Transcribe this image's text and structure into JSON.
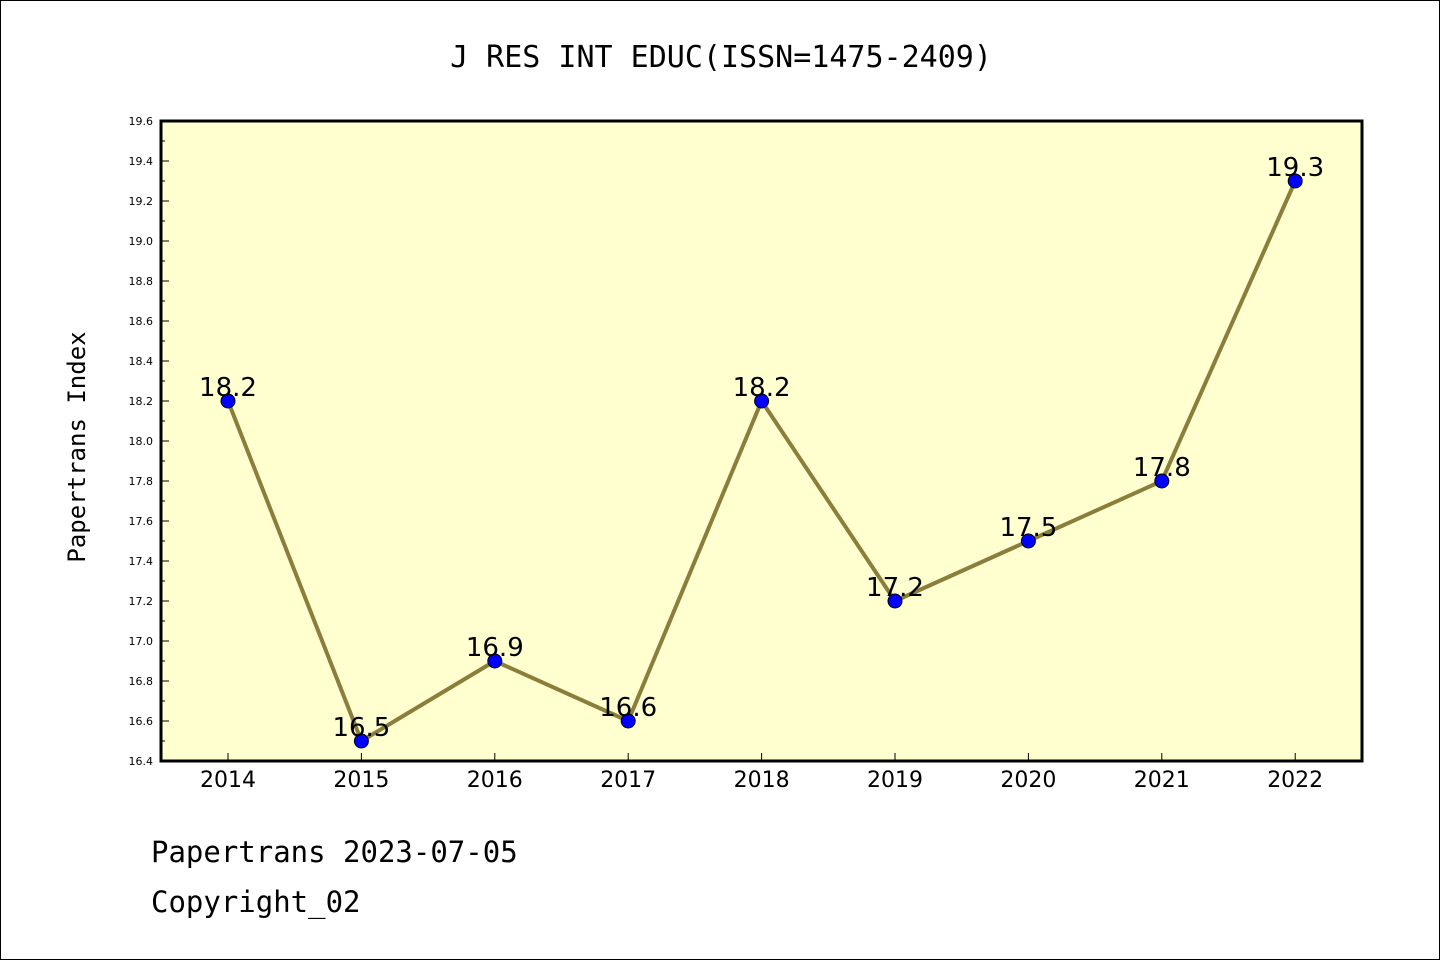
{
  "chart_data": {
    "type": "line",
    "title": "J RES INT EDUC(ISSN=1475-2409)",
    "xlabel": "",
    "ylabel": "Papertrans Index",
    "categories": [
      "2014",
      "2015",
      "2016",
      "2017",
      "2018",
      "2019",
      "2020",
      "2021",
      "2022"
    ],
    "series": [
      {
        "values": [
          18.2,
          16.5,
          16.9,
          16.6,
          18.2,
          17.2,
          17.5,
          17.8,
          19.3
        ],
        "data_labels": [
          "18.2",
          "16.5",
          "16.9",
          "16.6",
          "18.2",
          "17.2",
          "17.5",
          "17.8",
          "19.3"
        ]
      }
    ],
    "ylim": [
      16.4,
      19.6
    ],
    "yticks": [
      "16.4",
      "16.6",
      "16.8",
      "17.0",
      "17.2",
      "17.4",
      "17.6",
      "17.8",
      "18.0",
      "18.2",
      "18.4",
      "18.6",
      "18.8",
      "19.0",
      "19.2",
      "19.4",
      "19.6"
    ],
    "grid": false,
    "colors": {
      "plot_background": "#ffffd0",
      "line": "#8b7d3a",
      "marker": "#0000ff"
    }
  },
  "footer": {
    "line1": "Papertrans 2023-07-05",
    "line2": "Copyright_02"
  }
}
